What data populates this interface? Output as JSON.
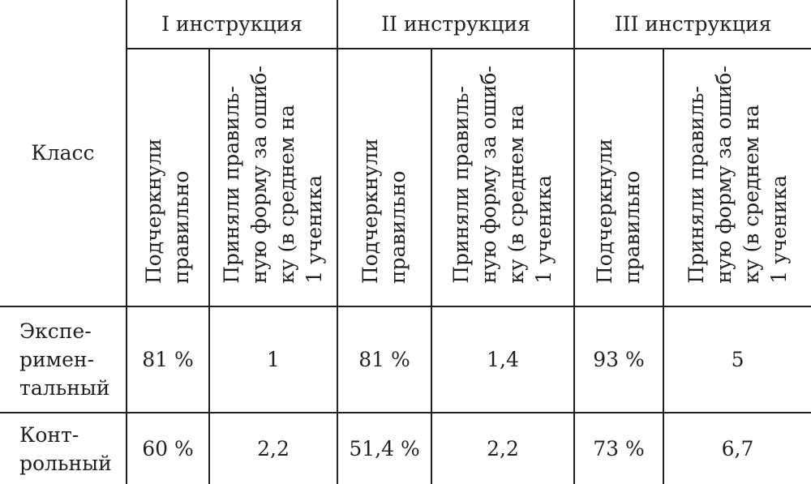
{
  "table": {
    "class_header": "Класс",
    "groups": [
      "I инструкция",
      "II инструкция",
      "III инструкция"
    ],
    "subheaders": {
      "underlined": "Подчеркнули\nправильно",
      "accepted": "Приняли правиль-\nную форму за ошиб-\nку (в среднем на\n1 ученика"
    },
    "rows": [
      {
        "label": "Экспе-\nримен-\nтальный",
        "values": [
          "81 %",
          "1",
          "81 %",
          "1,4",
          "93 %",
          "5"
        ]
      },
      {
        "label": "Конт-\nрольный",
        "values": [
          "60 %",
          "2,2",
          "51,4 %",
          "2,2",
          "73 %",
          "6,7"
        ]
      }
    ]
  }
}
